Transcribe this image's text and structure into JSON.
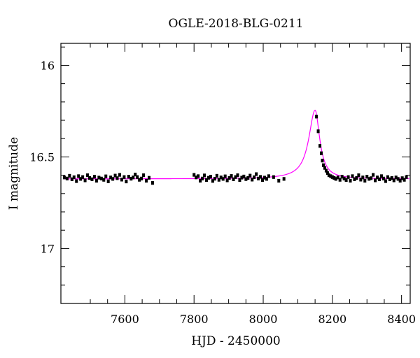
{
  "chart_data": {
    "type": "scatter",
    "title": "OGLE-2018-BLG-0211",
    "xlabel": "HJD - 2450000",
    "ylabel": "I magnitude",
    "xlim": [
      7415,
      8425
    ],
    "ylim": [
      17.3,
      15.88
    ],
    "y_inverted": true,
    "xticks": [
      7600,
      7800,
      8000,
      8200,
      8400
    ],
    "xtick_labels": [
      "7600",
      "7800",
      "8000",
      "8200",
      "8400"
    ],
    "yticks": [
      16,
      16.5,
      17
    ],
    "ytick_labels": [
      "16",
      "16.5",
      "17"
    ],
    "grid": false,
    "colors": {
      "data": "#000000",
      "model": "#ff00ff"
    },
    "model": {
      "name": "",
      "baseline_mag": 16.62,
      "peak_mag": 16.245,
      "t0": 8150,
      "rise_width": 22,
      "decay_width": 16,
      "x_range": [
        7422,
        8422
      ]
    },
    "series": [
      {
        "name": "",
        "points": [
          [
            7425,
            16.612
          ],
          [
            7433,
            16.618
          ],
          [
            7440,
            16.603
          ],
          [
            7447,
            16.622
          ],
          [
            7453,
            16.611
          ],
          [
            7460,
            16.632
          ],
          [
            7466,
            16.605
          ],
          [
            7472,
            16.62
          ],
          [
            7478,
            16.61
          ],
          [
            7485,
            16.628
          ],
          [
            7492,
            16.6
          ],
          [
            7498,
            16.615
          ],
          [
            7505,
            16.622
          ],
          [
            7512,
            16.608
          ],
          [
            7518,
            16.63
          ],
          [
            7525,
            16.613
          ],
          [
            7532,
            16.618
          ],
          [
            7539,
            16.625
          ],
          [
            7545,
            16.606
          ],
          [
            7552,
            16.633
          ],
          [
            7559,
            16.612
          ],
          [
            7565,
            16.62
          ],
          [
            7572,
            16.602
          ],
          [
            7578,
            16.616
          ],
          [
            7585,
            16.598
          ],
          [
            7591,
            16.624
          ],
          [
            7598,
            16.61
          ],
          [
            7604,
            16.634
          ],
          [
            7611,
            16.608
          ],
          [
            7618,
            16.619
          ],
          [
            7624,
            16.612
          ],
          [
            7630,
            16.596
          ],
          [
            7636,
            16.61
          ],
          [
            7642,
            16.625
          ],
          [
            7648,
            16.618
          ],
          [
            7654,
            16.6
          ],
          [
            7662,
            16.63
          ],
          [
            7670,
            16.614
          ],
          [
            7680,
            16.642
          ],
          [
            7800,
            16.598
          ],
          [
            7806,
            16.612
          ],
          [
            7812,
            16.605
          ],
          [
            7818,
            16.63
          ],
          [
            7824,
            16.618
          ],
          [
            7830,
            16.601
          ],
          [
            7836,
            16.626
          ],
          [
            7842,
            16.614
          ],
          [
            7848,
            16.608
          ],
          [
            7854,
            16.631
          ],
          [
            7860,
            16.619
          ],
          [
            7866,
            16.603
          ],
          [
            7872,
            16.625
          ],
          [
            7878,
            16.612
          ],
          [
            7884,
            16.62
          ],
          [
            7890,
            16.606
          ],
          [
            7896,
            16.628
          ],
          [
            7902,
            16.615
          ],
          [
            7908,
            16.604
          ],
          [
            7914,
            16.622
          ],
          [
            7920,
            16.61
          ],
          [
            7926,
            16.6
          ],
          [
            7932,
            16.626
          ],
          [
            7938,
            16.613
          ],
          [
            7944,
            16.607
          ],
          [
            7950,
            16.621
          ],
          [
            7956,
            16.615
          ],
          [
            7962,
            16.602
          ],
          [
            7968,
            16.624
          ],
          [
            7974,
            16.611
          ],
          [
            7980,
            16.594
          ],
          [
            7986,
            16.618
          ],
          [
            7992,
            16.609
          ],
          [
            7998,
            16.626
          ],
          [
            8004,
            16.613
          ],
          [
            8010,
            16.62
          ],
          [
            8016,
            16.605
          ],
          [
            8030,
            16.61
          ],
          [
            8045,
            16.63
          ],
          [
            8060,
            16.62
          ],
          [
            8154,
            16.28
          ],
          [
            8159,
            16.36
          ],
          [
            8164,
            16.44
          ],
          [
            8168,
            16.48
          ],
          [
            8171,
            16.52
          ],
          [
            8174,
            16.545
          ],
          [
            8178,
            16.56
          ],
          [
            8182,
            16.575
          ],
          [
            8186,
            16.588
          ],
          [
            8190,
            16.6
          ],
          [
            8195,
            16.605
          ],
          [
            8200,
            16.61
          ],
          [
            8205,
            16.615
          ],
          [
            8210,
            16.62
          ],
          [
            8216,
            16.612
          ],
          [
            8222,
            16.625
          ],
          [
            8228,
            16.608
          ],
          [
            8234,
            16.618
          ],
          [
            8240,
            16.626
          ],
          [
            8246,
            16.61
          ],
          [
            8252,
            16.63
          ],
          [
            8258,
            16.605
          ],
          [
            8264,
            16.622
          ],
          [
            8270,
            16.615
          ],
          [
            8276,
            16.6
          ],
          [
            8282,
            16.624
          ],
          [
            8288,
            16.612
          ],
          [
            8294,
            16.63
          ],
          [
            8300,
            16.608
          ],
          [
            8306,
            16.62
          ],
          [
            8312,
            16.616
          ],
          [
            8318,
            16.598
          ],
          [
            8324,
            16.628
          ],
          [
            8330,
            16.612
          ],
          [
            8336,
            16.622
          ],
          [
            8342,
            16.605
          ],
          [
            8348,
            16.618
          ],
          [
            8354,
            16.632
          ],
          [
            8360,
            16.61
          ],
          [
            8366,
            16.622
          ],
          [
            8372,
            16.615
          ],
          [
            8378,
            16.628
          ],
          [
            8384,
            16.612
          ],
          [
            8390,
            16.62
          ],
          [
            8396,
            16.63
          ],
          [
            8402,
            16.616
          ],
          [
            8408,
            16.625
          ],
          [
            8414,
            16.61
          ]
        ]
      }
    ]
  }
}
